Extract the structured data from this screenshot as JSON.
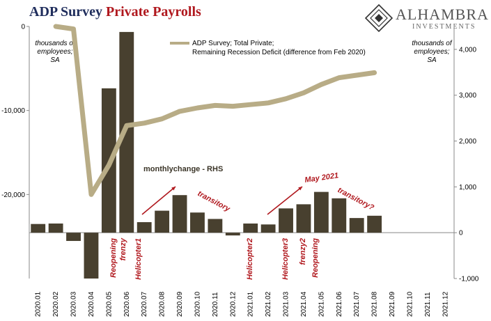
{
  "header": {
    "title_part1": "ADP Survey",
    "title_part2": "Private Payrolls"
  },
  "brand": {
    "name": "ALHAMBRA",
    "subtitle": "INVESTMENTS"
  },
  "units": {
    "left": "thousands of\nemployees;\nSA",
    "right": "thousands of\nemployees;\nSA"
  },
  "colors": {
    "bars": "#48402f",
    "line": "#b8ac86",
    "arrow": "#b0181e",
    "title_blue": "#1f2d5c",
    "title_red": "#b0181e"
  },
  "chart_data": {
    "type": "bar+line",
    "categories": [
      "2020.01",
      "2020.02",
      "2020.03",
      "2020.04",
      "2020.05",
      "2020.06",
      "2020.07",
      "2020.08",
      "2020.09",
      "2020.10",
      "2020.11",
      "2020.12",
      "2021.01",
      "2021.02",
      "2021.03",
      "2021.04",
      "2021.05",
      "2021.06",
      "2021.07",
      "2021.08",
      "2021.09",
      "2021.10",
      "2021.11",
      "2021.12"
    ],
    "bars": {
      "name": "monthlychange - RHS",
      "axis": "right",
      "values": [
        190,
        200,
        -180,
        -1000,
        3150,
        4380,
        230,
        480,
        820,
        440,
        300,
        -60,
        200,
        180,
        530,
        620,
        890,
        750,
        320,
        370,
        null,
        null,
        null,
        null
      ]
    },
    "line": {
      "name": "ADP Survey; Total Private; Remaining Recession Deficit (difference from Feb 2020)",
      "axis": "left",
      "values": [
        null,
        0,
        -300,
        -20000,
        -16500,
        -11800,
        -11500,
        -11000,
        -10100,
        -9700,
        -9400,
        -9500,
        -9300,
        -9100,
        -8600,
        -7900,
        -6900,
        -6100,
        -5800,
        -5500,
        null,
        null,
        null,
        null
      ]
    },
    "left_axis": {
      "ticks": [
        0,
        -10000,
        -20000
      ],
      "tick_labels": [
        "0",
        "-10,000",
        "-20,000"
      ],
      "ylim": [
        -30000,
        0
      ]
    },
    "right_axis": {
      "ticks": [
        -1000,
        0,
        1000,
        2000,
        3000,
        4000
      ],
      "tick_labels": [
        "-1,000",
        "0",
        "1,000",
        "2,000",
        "3,000",
        "4,000"
      ],
      "ylim": [
        -1000,
        4500
      ]
    },
    "annotations": {
      "bar_series_label": "monthlychange - RHS",
      "reopening1": "Reopening frenzy",
      "helicopter1": "Helicopter1",
      "transitory1": "transitory",
      "helicopter2": "Helicopter2",
      "helicopter3": "Helicopter3",
      "reopening2": "Reopening frenzy2",
      "may2021": "May 2021",
      "transitory2": "transitory?"
    }
  }
}
